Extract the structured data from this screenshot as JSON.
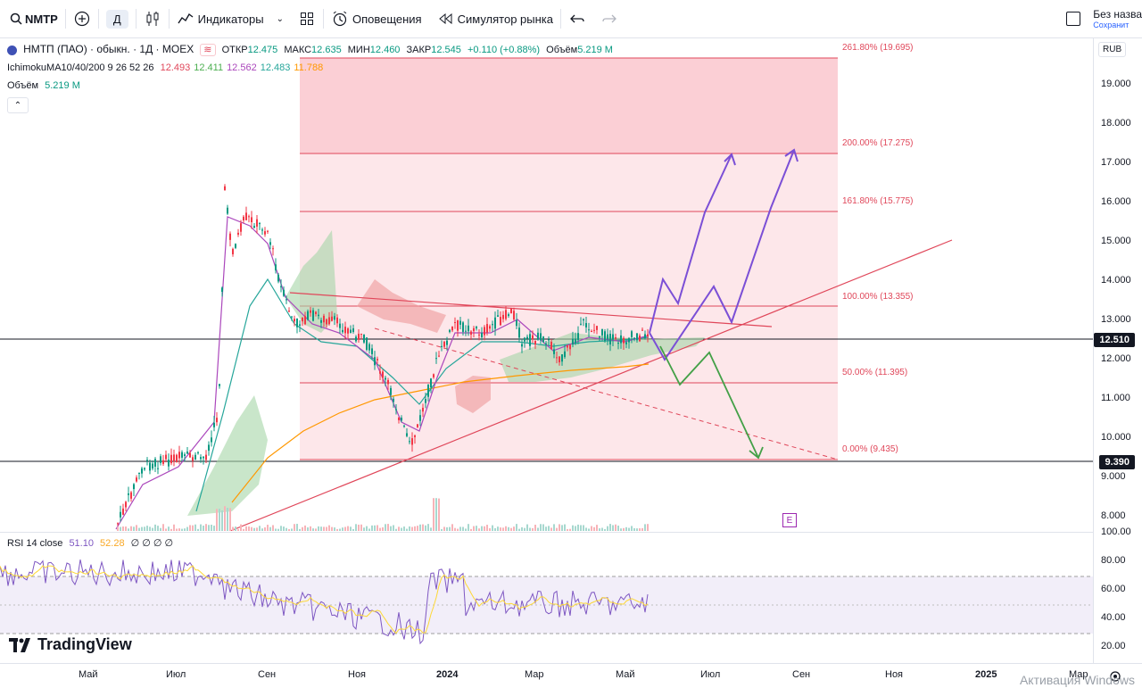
{
  "toolbar": {
    "symbol": "NMTP",
    "timeframe": "Д",
    "indicators": "Индикаторы",
    "alerts": "Оповещения",
    "replay": "Симулятор рынка",
    "save_title": "Без назва",
    "save_sub": "Сохранит"
  },
  "legend": {
    "title": "НМТП (ПАО) · обыкн. · 1Д · MOEX",
    "open_label": "ОТКР",
    "open": "12.475",
    "high_label": "МАКС",
    "high": "12.635",
    "low_label": "МИН",
    "low": "12.460",
    "close_label": "ЗАКР",
    "close": "12.545",
    "change": "+0.110 (+0.88%)",
    "vol_label": "Объём",
    "vol": "5.219 M",
    "ichimoku_name": "Ichimoku",
    "ma_name": "MA10/40/200 9 26 52 26",
    "ichi_vals": [
      "12.493",
      "12.411",
      "12.562",
      "12.483",
      "11.788"
    ],
    "ichi_colors": [
      "#e0475a",
      "#4caf50",
      "#ab47bc",
      "#26a69a",
      "#ff9800"
    ],
    "volume_line": "Объём",
    "volume_val": "5.219 M"
  },
  "rsi_legend": {
    "name": "RSI 14 close",
    "v1": "51.10",
    "v2": "52.28",
    "rest": "∅ ∅ ∅ ∅"
  },
  "currency": "RUB",
  "price_ticks": [
    "19.000",
    "18.000",
    "17.000",
    "16.000",
    "15.000",
    "14.000",
    "13.000",
    "12.000",
    "11.000",
    "10.000",
    "9.000",
    "8.000"
  ],
  "rsi_ticks": [
    "100.00",
    "80.00",
    "60.00",
    "40.00",
    "20.00"
  ],
  "time_ticks": [
    "Май",
    "Июл",
    "Сен",
    "Ноя",
    "2024",
    "Мар",
    "Май",
    "Июл",
    "Сен",
    "Ноя",
    "2025",
    "Мар"
  ],
  "fib_levels": [
    {
      "label": "261.80% (19.695)"
    },
    {
      "label": "200.00% (17.275)"
    },
    {
      "label": "161.80% (15.775)"
    },
    {
      "label": "100.00% (13.355)"
    },
    {
      "label": "50.00% (11.395)"
    },
    {
      "label": "0.00% (9.435)"
    }
  ],
  "price_badges": {
    "current": "12.510",
    "support": "9.390"
  },
  "brand": "TradingView",
  "event_marker": "E",
  "activation": "Активация Windows",
  "colors": {
    "fib": "#e0475a",
    "bull": "#089981",
    "bear": "#f23645",
    "rsi": "#7e57c2"
  }
}
